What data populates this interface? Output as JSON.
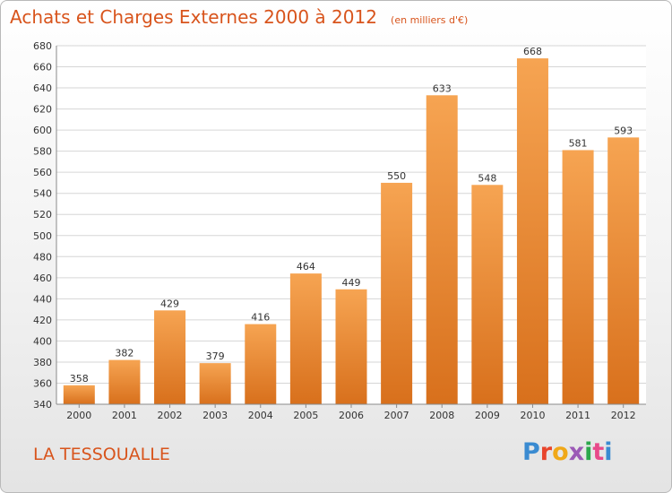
{
  "header": {
    "title": "Achats et Charges Externes 2000 à 2012",
    "subtitle": "(en milliers d'€)"
  },
  "footer": {
    "commune": "LA TESSOUALLE",
    "logo_text": "Proxiti"
  },
  "colors": {
    "accent": "#d8541c",
    "bar_top": "#f6a452",
    "bar_bottom": "#d8701c",
    "logo_letters": [
      "#3a8bd1",
      "#e8452c",
      "#f0a818",
      "#9b59b6",
      "#2ca84c",
      "#e84a8a",
      "#3a8bd1"
    ]
  },
  "chart_data": {
    "type": "bar",
    "categories": [
      "2000",
      "2001",
      "2002",
      "2003",
      "2004",
      "2005",
      "2006",
      "2007",
      "2008",
      "2009",
      "2010",
      "2011",
      "2012"
    ],
    "values": [
      358,
      382,
      429,
      379,
      416,
      464,
      449,
      550,
      633,
      548,
      668,
      581,
      593
    ],
    "title": "Achats et Charges Externes 2000 à 2012",
    "subtitle": "(en milliers d'€)",
    "ylim": [
      340,
      680
    ],
    "yticks": [
      340,
      360,
      380,
      400,
      420,
      440,
      460,
      480,
      500,
      520,
      540,
      560,
      580,
      600,
      620,
      640,
      660,
      680
    ],
    "grid": true,
    "data_labels": true
  }
}
